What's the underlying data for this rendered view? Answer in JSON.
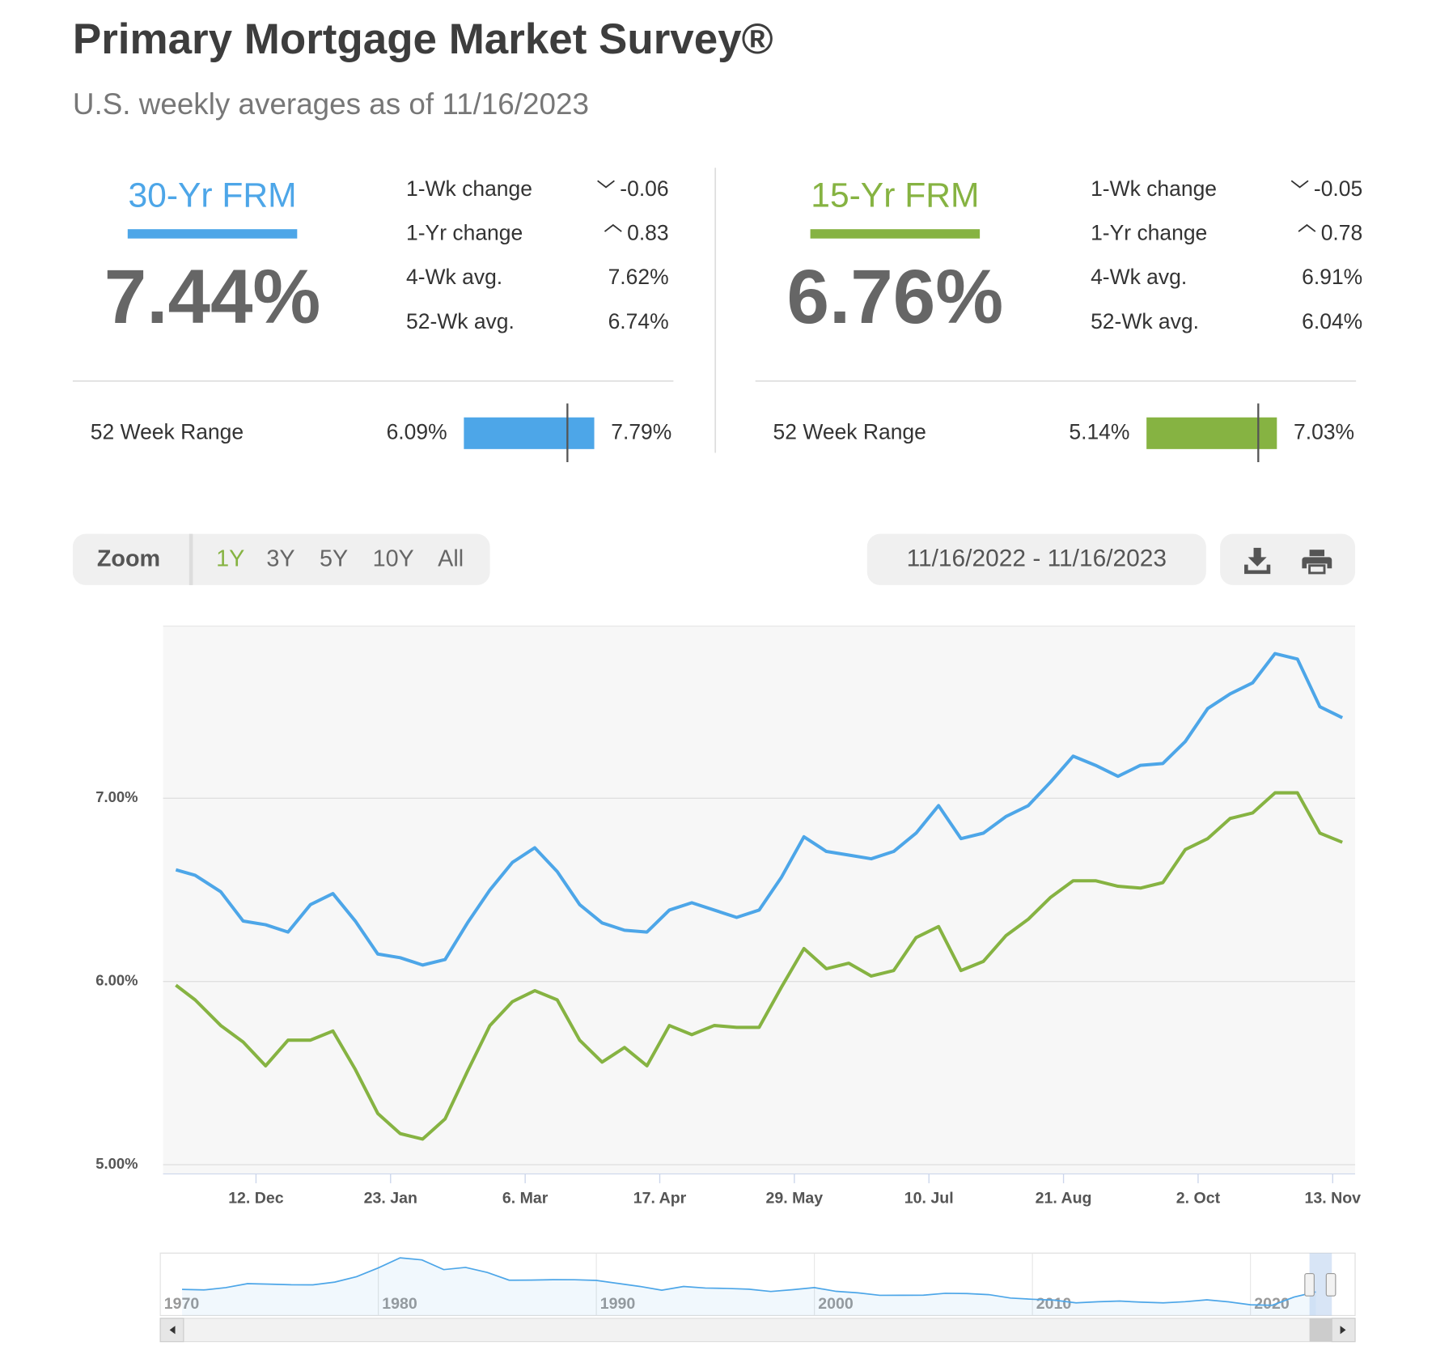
{
  "header": {
    "title": "Primary Mortgage Market Survey®",
    "subtitle": "U.S. weekly averages as of 11/16/2023"
  },
  "cards": [
    {
      "name": "30-Yr FRM",
      "color": "#4da6e8",
      "rate": {
        "value": 7.44,
        "label": "7.44%"
      },
      "stats": [
        {
          "label": "1-Wk change",
          "value": "-0.06",
          "direction": "down"
        },
        {
          "label": "1-Yr change",
          "value": "0.83",
          "direction": "up"
        },
        {
          "label": "4-Wk avg.",
          "value": "7.62%"
        },
        {
          "label": "52-Wk avg.",
          "value": "6.74%"
        }
      ],
      "range_label": "52 Week Range",
      "range_low": {
        "value": 6.09,
        "label": "6.09%"
      },
      "range_high": {
        "value": 7.79,
        "label": "7.79%"
      }
    },
    {
      "name": "15-Yr FRM",
      "color": "#86b342",
      "rate": {
        "value": 6.76,
        "label": "6.76%"
      },
      "stats": [
        {
          "label": "1-Wk change",
          "value": "-0.05",
          "direction": "down"
        },
        {
          "label": "1-Yr change",
          "value": "0.78",
          "direction": "up"
        },
        {
          "label": "4-Wk avg.",
          "value": "6.91%"
        },
        {
          "label": "52-Wk avg.",
          "value": "6.04%"
        }
      ],
      "range_label": "52 Week Range",
      "range_low": {
        "value": 5.14,
        "label": "5.14%"
      },
      "range_high": {
        "value": 7.03,
        "label": "7.03%"
      }
    }
  ],
  "toolbar": {
    "zoom_label": "Zoom",
    "buttons": [
      "1Y",
      "3Y",
      "5Y",
      "10Y",
      "All"
    ],
    "active": 0,
    "active_color": "#86b342",
    "date_range": "11/16/2022 - 11/16/2023"
  },
  "chart_data": [
    {
      "type": "line",
      "x": [
        "2022-11-17",
        "2022-11-23",
        "2022-12-01",
        "2022-12-08",
        "2022-12-15",
        "2022-12-22",
        "2022-12-29",
        "2023-01-05",
        "2023-01-12",
        "2023-01-19",
        "2023-01-26",
        "2023-02-02",
        "2023-02-09",
        "2023-02-16",
        "2023-02-23",
        "2023-03-02",
        "2023-03-09",
        "2023-03-16",
        "2023-03-23",
        "2023-03-30",
        "2023-04-06",
        "2023-04-13",
        "2023-04-20",
        "2023-04-27",
        "2023-05-04",
        "2023-05-11",
        "2023-05-18",
        "2023-05-25",
        "2023-06-01",
        "2023-06-08",
        "2023-06-15",
        "2023-06-22",
        "2023-06-29",
        "2023-07-06",
        "2023-07-13",
        "2023-07-20",
        "2023-07-27",
        "2023-08-03",
        "2023-08-10",
        "2023-08-17",
        "2023-08-24",
        "2023-08-31",
        "2023-09-07",
        "2023-09-14",
        "2023-09-21",
        "2023-09-28",
        "2023-10-05",
        "2023-10-12",
        "2023-10-19",
        "2023-10-26",
        "2023-11-02",
        "2023-11-09",
        "2023-11-16"
      ],
      "series": [
        {
          "color": "#4da6e8",
          "values": [
            6.61,
            6.58,
            6.49,
            6.33,
            6.31,
            6.27,
            6.42,
            6.48,
            6.33,
            6.15,
            6.13,
            6.09,
            6.12,
            6.32,
            6.5,
            6.65,
            6.73,
            6.6,
            6.42,
            6.32,
            6.28,
            6.27,
            6.39,
            6.43,
            6.39,
            6.35,
            6.39,
            6.57,
            6.79,
            6.71,
            6.69,
            6.67,
            6.71,
            6.81,
            6.96,
            6.78,
            6.81,
            6.9,
            6.96,
            7.09,
            7.23,
            7.18,
            7.12,
            7.18,
            7.19,
            7.31,
            7.49,
            7.57,
            7.63,
            7.79,
            7.76,
            7.5,
            7.44
          ]
        },
        {
          "color": "#86b342",
          "values": [
            5.98,
            5.9,
            5.76,
            5.67,
            5.54,
            5.68,
            5.68,
            5.73,
            5.52,
            5.28,
            5.17,
            5.14,
            5.25,
            5.51,
            5.76,
            5.89,
            5.95,
            5.9,
            5.68,
            5.56,
            5.64,
            5.54,
            5.76,
            5.71,
            5.76,
            5.75,
            5.75,
            5.97,
            6.18,
            6.07,
            6.1,
            6.03,
            6.06,
            6.24,
            6.3,
            6.06,
            6.11,
            6.25,
            6.34,
            6.46,
            6.55,
            6.55,
            6.52,
            6.51,
            6.54,
            6.72,
            6.78,
            6.89,
            6.92,
            7.03,
            7.03,
            6.81,
            6.76
          ]
        }
      ],
      "xlim": [
        "2022-11-13",
        "2023-11-20"
      ],
      "xticks": [
        {
          "value": "2022-12-12",
          "label": "12. Dec"
        },
        {
          "value": "2023-01-23",
          "label": "23. Jan"
        },
        {
          "value": "2023-03-06",
          "label": "6. Mar"
        },
        {
          "value": "2023-04-17",
          "label": "17. Apr"
        },
        {
          "value": "2023-05-29",
          "label": "29. May"
        },
        {
          "value": "2023-07-10",
          "label": "10. Jul"
        },
        {
          "value": "2023-08-21",
          "label": "21. Aug"
        },
        {
          "value": "2023-10-02",
          "label": "2. Oct"
        },
        {
          "value": "2023-11-13",
          "label": "13. Nov"
        }
      ],
      "ylim": [
        4.95,
        7.94
      ],
      "yticks": [
        {
          "value": 5,
          "label": "5.00%"
        },
        {
          "value": 6,
          "label": "6.00%"
        },
        {
          "value": 7,
          "label": "7.00%"
        }
      ],
      "grid": true
    },
    {
      "type": "area",
      "x": [
        1971,
        1972,
        1973,
        1974,
        1975,
        1976,
        1977,
        1978,
        1979,
        1980,
        1981,
        1982,
        1983,
        1984,
        1985,
        1986,
        1987,
        1988,
        1989,
        1990,
        1991,
        1992,
        1993,
        1994,
        1995,
        1996,
        1997,
        1998,
        1999,
        2000,
        2001,
        2002,
        2003,
        2004,
        2005,
        2006,
        2007,
        2008,
        2009,
        2010,
        2011,
        2012,
        2013,
        2014,
        2015,
        2016,
        2017,
        2018,
        2019,
        2020,
        2021,
        2022,
        2023
      ],
      "values": [
        7.54,
        7.38,
        8.04,
        9.19,
        9.05,
        8.87,
        8.85,
        9.64,
        11.2,
        13.74,
        16.63,
        16.04,
        13.24,
        13.88,
        12.43,
        10.19,
        10.21,
        10.34,
        10.32,
        10.13,
        9.25,
        8.39,
        7.31,
        8.38,
        7.93,
        7.81,
        7.6,
        6.94,
        7.44,
        8.05,
        6.97,
        6.54,
        5.83,
        5.84,
        5.87,
        6.41,
        6.34,
        6.03,
        5.04,
        4.69,
        4.45,
        3.66,
        3.98,
        4.17,
        3.85,
        3.65,
        3.99,
        4.54,
        3.94,
        3.11,
        2.96,
        5.34,
        6.81
      ],
      "color": "#4da6e8",
      "xlim": [
        1970,
        2024.8
      ],
      "xticks": [
        1970,
        1980,
        1990,
        2000,
        2010,
        2020
      ],
      "ylim": [
        0,
        18
      ]
    }
  ]
}
